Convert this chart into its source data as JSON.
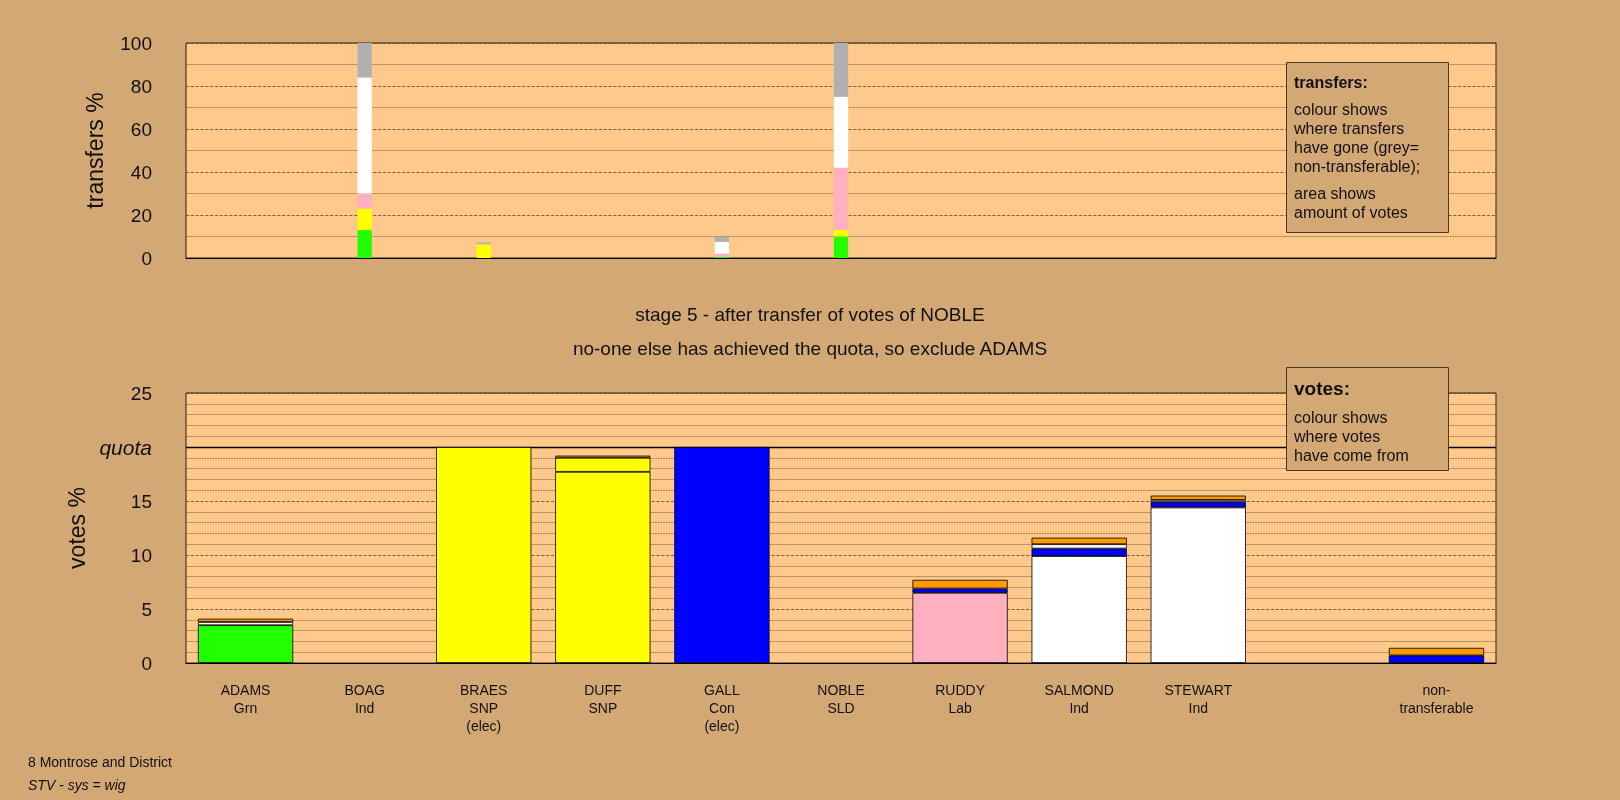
{
  "chart_data": [
    {
      "type": "bar",
      "stacked": true,
      "ylabel": "transfers %",
      "tick_labels": "y",
      "grid": "y",
      "categories": [
        null,
        null,
        null,
        null,
        null,
        null,
        null,
        null,
        null,
        null,
        null
      ],
      "ylim": [
        0,
        100
      ],
      "yticks": [
        0,
        {
          "value": 10,
          "label": null
        },
        20,
        {
          "value": 30,
          "label": null
        },
        40,
        {
          "value": 50,
          "label": null
        },
        60,
        {
          "value": 70,
          "label": null
        },
        80,
        {
          "value": 90,
          "label": null
        },
        100
      ],
      "series": [
        {
          "color": "#22ff00",
          "values": [
            null,
            13,
            null,
            null,
            0.5,
            10,
            null,
            null,
            null,
            null,
            null
          ]
        },
        {
          "color": "#ffff00",
          "values": [
            null,
            10,
            6.4,
            null,
            null,
            3,
            null,
            null,
            null,
            null,
            null
          ]
        },
        {
          "color": "#ffb0c0",
          "values": [
            null,
            7,
            null,
            null,
            1.5,
            29,
            null,
            null,
            null,
            null,
            null
          ]
        },
        {
          "color": "#ffffff",
          "values": [
            null,
            54,
            null,
            null,
            5.5,
            33,
            null,
            null,
            null,
            null,
            null
          ]
        },
        {
          "color": "#b0b0b0",
          "values": [
            null,
            16,
            0.8,
            null,
            2.3,
            25,
            null,
            null,
            null,
            null,
            null
          ]
        }
      ],
      "annotations": [
        "transfers:",
        "colour shows\nwhere transfers\nhave gone (grey=\nnon-transferable);",
        "area shows\namount of votes"
      ]
    },
    {
      "type": "bar",
      "stacked": true,
      "title": "stage 5 - after transfer of votes of NOBLE",
      "subtitle": "no-one else has achieved the quota, so exclude ADAMS",
      "ylabel": "votes %",
      "grid": "y",
      "categories": [
        "ADAMS\nGrn",
        "BOAG\nInd",
        "BRAES\nSNP\n(elec)",
        "DUFF\nSNP",
        "GALL\nCon\n(elec)",
        "NOBLE\nSLD",
        "RUDDY\nLab",
        "SALMOND\nInd",
        "STEWART\nInd",
        null,
        "non-\ntransferable"
      ],
      "ylim": [
        0,
        25
      ],
      "yticks": [
        0,
        {
          "value": 1,
          "label": null
        },
        {
          "value": 2,
          "label": null
        },
        {
          "value": 3,
          "label": null
        },
        {
          "value": 4,
          "label": null
        },
        5,
        {
          "value": 6,
          "label": null
        },
        {
          "value": 7,
          "label": null
        },
        {
          "value": 8,
          "label": null
        },
        {
          "value": 9,
          "label": null
        },
        10,
        {
          "value": 11,
          "label": null
        },
        {
          "value": 12,
          "label": null
        },
        {
          "value": 13,
          "label": null
        },
        {
          "value": 14,
          "label": null
        },
        15,
        {
          "value": 16,
          "label": null
        },
        {
          "value": 17,
          "label": null
        },
        {
          "value": 18,
          "label": null
        },
        {
          "value": 19,
          "label": null
        },
        {
          "value": 20,
          "label": "quota"
        },
        {
          "value": 21,
          "label": null
        },
        {
          "value": 22,
          "label": null
        },
        {
          "value": 23,
          "label": null
        },
        {
          "value": 24,
          "label": null
        },
        25
      ],
      "ref_lines": [
        {
          "axis": "y",
          "value": 20,
          "color": "#000000",
          "line_style": "solid"
        }
      ],
      "series": [
        {
          "color": "#22ff00",
          "values": [
            3.5,
            null,
            null,
            null,
            null,
            null,
            null,
            null,
            null,
            null,
            null
          ]
        },
        {
          "color": "#ffff00",
          "values": [
            null,
            null,
            20,
            17.7,
            null,
            null,
            null,
            null,
            null,
            null,
            null
          ]
        },
        {
          "color": "#0000ff",
          "values": [
            null,
            null,
            null,
            null,
            20,
            null,
            null,
            null,
            null,
            null,
            null
          ]
        },
        {
          "color": "#ffb0c0",
          "values": [
            null,
            null,
            null,
            null,
            null,
            null,
            6.5,
            null,
            null,
            null,
            null
          ]
        },
        {
          "color": "#ffffff",
          "values": [
            null,
            null,
            null,
            null,
            null,
            null,
            null,
            9.9,
            14.4,
            null,
            null
          ]
        },
        {
          "color": "#ffff00",
          "values": [
            null,
            null,
            null,
            1.3,
            null,
            null,
            null,
            null,
            null,
            null,
            null
          ]
        },
        {
          "color": "#0000ff",
          "values": [
            null,
            null,
            null,
            null,
            null,
            null,
            0.4,
            0.7,
            0.5,
            null,
            0.7
          ]
        },
        {
          "color": "#ffffff",
          "values": [
            0.3,
            null,
            null,
            null,
            null,
            null,
            null,
            0.4,
            0.2,
            null,
            null
          ]
        },
        {
          "color": "#ff9900",
          "values": [
            0.3,
            null,
            null,
            0.2,
            null,
            null,
            0.8,
            0.6,
            0.4,
            null,
            0.7
          ]
        }
      ],
      "annotations": [
        "votes:",
        "colour shows\nwhere votes\nhave come from",
        "8 Montrose and District",
        "STV - sys = wig"
      ]
    }
  ]
}
